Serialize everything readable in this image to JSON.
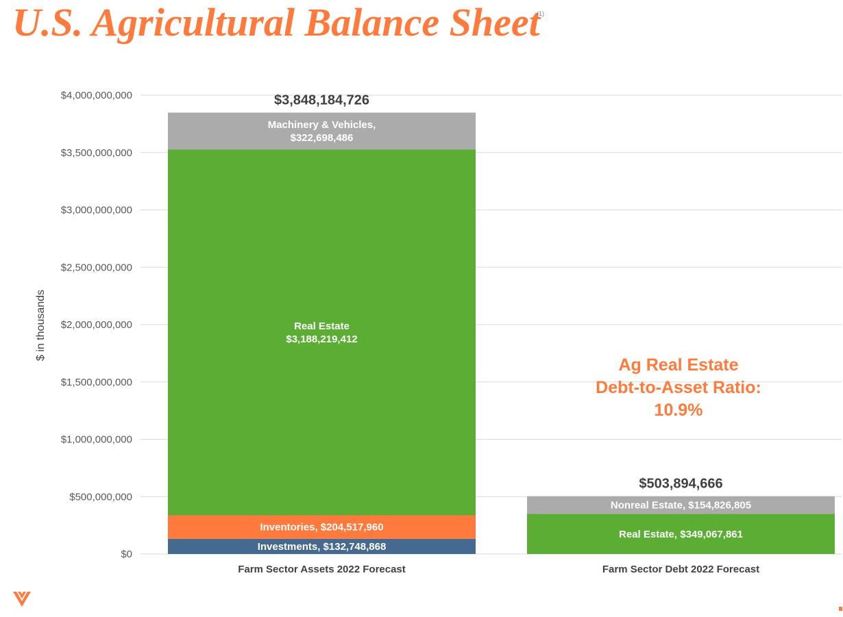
{
  "page": {
    "title": "U.S. Agricultural Balance Sheet",
    "footnote_marker": "(1)"
  },
  "callout": {
    "lines": [
      "Ag Real Estate",
      "Debt-to-Asset Ratio:",
      "10.9%"
    ],
    "color": "#FF7A3C"
  },
  "colors": {
    "brand": "#FF7A3C",
    "machinery": "#ABABAB",
    "real_estate": "#5BAD33",
    "inventories": "#FF7A3C",
    "investments": "#466A8F",
    "nonreal_estate": "#ABABAB",
    "axis_text": "#595959",
    "grid": "#D9D9D9"
  },
  "icons": {
    "logo": "chevron-logo-icon"
  },
  "chart_data": {
    "type": "bar",
    "stacked": true,
    "ylabel": "$ in thousands",
    "ylim": [
      0,
      4000000000
    ],
    "y_ticks": [
      0,
      500000000,
      1000000000,
      1500000000,
      2000000000,
      2500000000,
      3000000000,
      3500000000,
      4000000000
    ],
    "y_tick_labels": [
      "$0",
      "$500,000,000",
      "$1,000,000,000",
      "$1,500,000,000",
      "$2,000,000,000",
      "$2,500,000,000",
      "$3,000,000,000",
      "$3,500,000,000",
      "$4,000,000,000"
    ],
    "grid": true,
    "categories": [
      "Farm Sector Assets 2022 Forecast",
      "Farm Sector Debt 2022 Forecast"
    ],
    "stacks": [
      {
        "category": "Farm Sector Assets 2022 Forecast",
        "total": 3848184726,
        "total_label": "$3,848,184,726",
        "segments": [
          {
            "name": "Investments",
            "value": 132748868,
            "label_lines": [
              "Investments, $132,748,868"
            ],
            "color_key": "investments"
          },
          {
            "name": "Inventories",
            "value": 204517960,
            "label_lines": [
              "Inventories, $204,517,960"
            ],
            "color_key": "inventories"
          },
          {
            "name": "Real Estate",
            "value": 3188219412,
            "label_lines": [
              "Real Estate",
              "$3,188,219,412"
            ],
            "color_key": "real_estate"
          },
          {
            "name": "Machinery & Vehicles",
            "value": 322698486,
            "label_lines": [
              "Machinery & Vehicles,",
              "$322,698,486"
            ],
            "color_key": "machinery"
          }
        ]
      },
      {
        "category": "Farm Sector Debt 2022 Forecast",
        "total": 503894666,
        "total_label": "$503,894,666",
        "segments": [
          {
            "name": "Real Estate",
            "value": 349067861,
            "label_lines": [
              "Real Estate, $349,067,861"
            ],
            "color_key": "real_estate"
          },
          {
            "name": "Nonreal Estate",
            "value": 154826805,
            "label_lines": [
              "Nonreal Estate, $154,826,805"
            ],
            "color_key": "nonreal_estate"
          }
        ]
      }
    ]
  }
}
